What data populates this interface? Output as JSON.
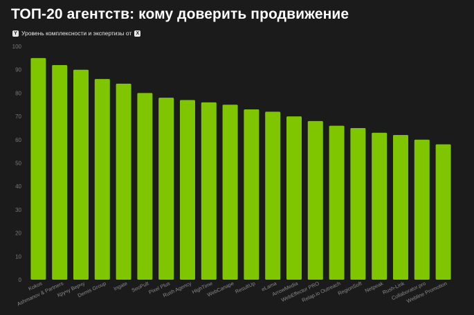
{
  "chart_data": {
    "type": "bar",
    "title": "ТОП-20 агентств: кому доверить продвижение",
    "subtitle": {
      "prefix_badge": "Y",
      "text": "Уровень комплексности и экспертизы от",
      "suffix_badge": "X"
    },
    "xlabel": "",
    "ylabel": "",
    "ylim": [
      0,
      100
    ],
    "yticks": [
      0,
      10,
      20,
      30,
      40,
      50,
      60,
      70,
      80,
      90,
      100
    ],
    "grid": false,
    "legend": "none",
    "bar_color": "#7fc600",
    "background_color": "#1b1b1b",
    "categories": [
      "Kokos",
      "Ashmanov & Partners",
      "Кручу Верчу",
      "Demis Group",
      "Ingate",
      "SeoPult",
      "Pixel Plus",
      "Rush Agency",
      "HighTime",
      "WebCanape",
      "ResultUp",
      "eLama",
      "ArrowMedia",
      "WebEffector PRO",
      "Relap.io Outreach",
      "RegionSoft",
      "Netpeak",
      "Rush-Link",
      "Collaborator.pro",
      "Webline Promotion"
    ],
    "values": [
      95,
      92,
      90,
      86,
      84,
      80,
      78,
      77,
      76,
      75,
      73,
      72,
      70,
      68,
      66,
      65,
      63,
      62,
      60,
      58
    ]
  }
}
